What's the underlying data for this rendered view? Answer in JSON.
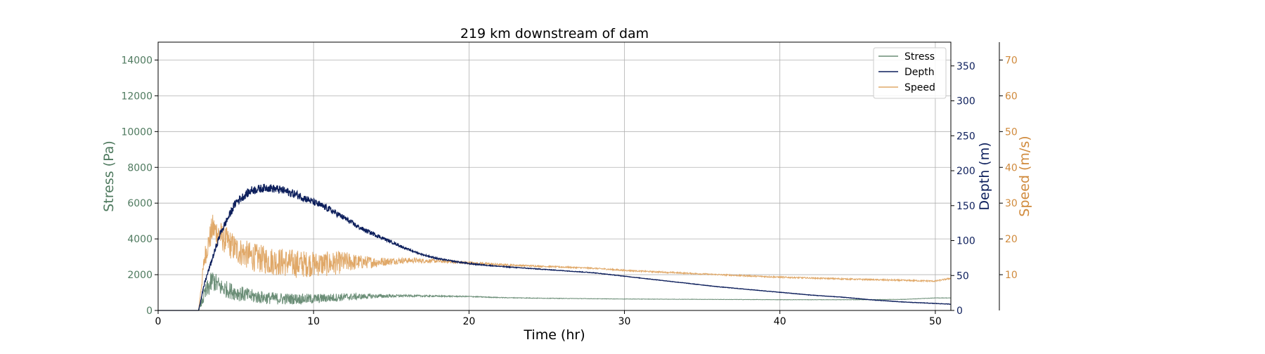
{
  "chart_data": {
    "type": "line",
    "title": "219 km downstream of dam",
    "xlabel": "Time (hr)",
    "xlim": [
      0,
      51
    ],
    "xticks": [
      0,
      10,
      20,
      30,
      40,
      50
    ],
    "grid": true,
    "legend_position": "top-right",
    "axes": {
      "stress": {
        "label": "Stress (Pa)",
        "color": "#4f7a5f",
        "ylim": [
          0,
          15000
        ],
        "ticks": [
          0,
          2000,
          4000,
          6000,
          8000,
          10000,
          12000,
          14000
        ]
      },
      "depth": {
        "label": "Depth (m)",
        "color": "#0d1f5c",
        "ylim": [
          0,
          384
        ],
        "ticks": [
          0,
          50,
          100,
          150,
          200,
          250,
          300,
          350
        ]
      },
      "speed": {
        "label": "Speed (m/s)",
        "color": "#d08a3c",
        "ylim": [
          0,
          75
        ],
        "ticks": [
          10,
          20,
          30,
          40,
          50,
          60,
          70
        ]
      }
    },
    "series": [
      {
        "name": "Stress",
        "axis": "stress",
        "color": "#6b8e77",
        "x": [
          0,
          2.6,
          3.0,
          3.5,
          4,
          5,
          6,
          7,
          8,
          9,
          10,
          11,
          12,
          14,
          16,
          18,
          20,
          22,
          25,
          30,
          35,
          40,
          45,
          48,
          50,
          51
        ],
        "y": [
          0,
          0,
          900,
          1700,
          1300,
          1000,
          800,
          700,
          650,
          650,
          650,
          700,
          750,
          800,
          820,
          800,
          780,
          720,
          680,
          640,
          620,
          600,
          600,
          620,
          700,
          700
        ],
        "noise": [
          0,
          0,
          500,
          600,
          500,
          450,
          400,
          350,
          330,
          300,
          280,
          250,
          220,
          120,
          60,
          40,
          30,
          20,
          15,
          10,
          10,
          10,
          10,
          10,
          10,
          10
        ]
      },
      {
        "name": "Depth",
        "axis": "depth",
        "color": "#0d1f5c",
        "x": [
          0,
          2.6,
          3,
          4,
          5,
          6,
          7,
          8,
          9,
          10,
          11,
          12,
          13,
          14,
          15,
          16,
          17,
          18,
          20,
          22,
          24,
          26,
          28,
          30,
          32,
          34,
          36,
          38,
          40,
          42,
          44,
          46,
          48,
          50,
          51
        ],
        "y": [
          0,
          0,
          40,
          110,
          155,
          172,
          176,
          172,
          165,
          155,
          145,
          132,
          118,
          108,
          98,
          88,
          80,
          74,
          67,
          63,
          60,
          57,
          54,
          49,
          44,
          39,
          34,
          30,
          26,
          22,
          19,
          15,
          12,
          10,
          9
        ],
        "noise": [
          0,
          0,
          3,
          5,
          6,
          6,
          6,
          6,
          6,
          5,
          5,
          4,
          3,
          3,
          2,
          1.5,
          1,
          1,
          1,
          0.6,
          0.5,
          0.4,
          0.4,
          0.3,
          0.3,
          0.3,
          0.3,
          0.3,
          0.3,
          0.3,
          0.3,
          0.3,
          0.3,
          0.3,
          0.3
        ]
      },
      {
        "name": "Speed",
        "axis": "speed",
        "color": "#e0a868",
        "x": [
          0,
          2.6,
          3,
          3.5,
          4,
          5,
          6,
          7,
          8,
          9,
          10,
          11,
          12,
          13,
          14,
          15,
          16,
          18,
          20,
          22,
          25,
          28,
          30,
          35,
          40,
          45,
          48,
          50,
          51
        ],
        "y": [
          0,
          0,
          15,
          23,
          21,
          17,
          15,
          14,
          13.5,
          13,
          13,
          13,
          13.5,
          13.5,
          13.5,
          13.8,
          14,
          13.8,
          13.3,
          12.8,
          12.3,
          11.8,
          11.2,
          10.2,
          9.3,
          8.7,
          8.4,
          8.2,
          9.0
        ],
        "noise": [
          0,
          0,
          3,
          4,
          4,
          4,
          4,
          4,
          4,
          4,
          3.5,
          3.5,
          3,
          2,
          1.5,
          1,
          0.8,
          0.5,
          0.4,
          0.3,
          0.2,
          0.2,
          0.2,
          0.2,
          0.2,
          0.2,
          0.2,
          0.2,
          0.2
        ]
      }
    ]
  }
}
